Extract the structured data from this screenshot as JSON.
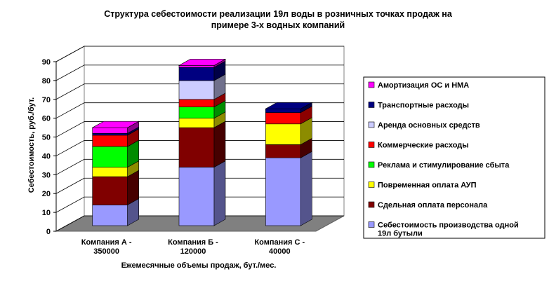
{
  "chart_data": {
    "type": "bar",
    "stacked": true,
    "three_d": true,
    "title": "Структура себестоимости реализации 19л воды в розничных точках продаж на примере 3-х водных компаний",
    "title_lines": [
      "Структура себестоимости реализации 19л воды в розничных точках продаж на",
      "примере 3-х водных компаний"
    ],
    "xlabel": "Ежемесячные объемы продаж, бут./мес.",
    "ylabel": "Себестоимость, руб./бут.",
    "ylim": [
      0,
      90
    ],
    "yticks": [
      0,
      10,
      20,
      30,
      40,
      50,
      60,
      70,
      80,
      90
    ],
    "grid": true,
    "legend_position": "right",
    "categories": [
      [
        "Компания А -",
        "350000"
      ],
      [
        "Компания Б -",
        "120000"
      ],
      [
        "Компания С -",
        "40000"
      ]
    ],
    "series": [
      {
        "name": "Себестоимость производства одной 19л бутыли",
        "name_lines": [
          "Себестоимость производства одной",
          "19л бутыли"
        ],
        "color": "#9999FF",
        "values": [
          11,
          31,
          36
        ]
      },
      {
        "name": "Сдельная оплата персонала",
        "color": "#800000",
        "values": [
          15,
          21,
          7
        ]
      },
      {
        "name": "Повременная оплата АУП",
        "color": "#FFFF00",
        "values": [
          5,
          5,
          11
        ]
      },
      {
        "name": "Реклама и стимулирование сбыта",
        "color": "#00FF00",
        "values": [
          11,
          6,
          0
        ]
      },
      {
        "name": "Коммерческие расходы",
        "color": "#FF0000",
        "values": [
          6,
          4,
          6
        ]
      },
      {
        "name": "Аренда основных средств",
        "color": "#CCCCFF",
        "values": [
          0,
          10,
          0
        ]
      },
      {
        "name": "Транспортные расходы",
        "color": "#000080",
        "values": [
          1,
          7,
          2
        ]
      },
      {
        "name": "Амортизация ОС и НМА",
        "color": "#FF00FF",
        "values": [
          3,
          1,
          0
        ]
      }
    ],
    "legend_order": [
      7,
      6,
      5,
      4,
      3,
      2,
      1,
      0
    ]
  }
}
